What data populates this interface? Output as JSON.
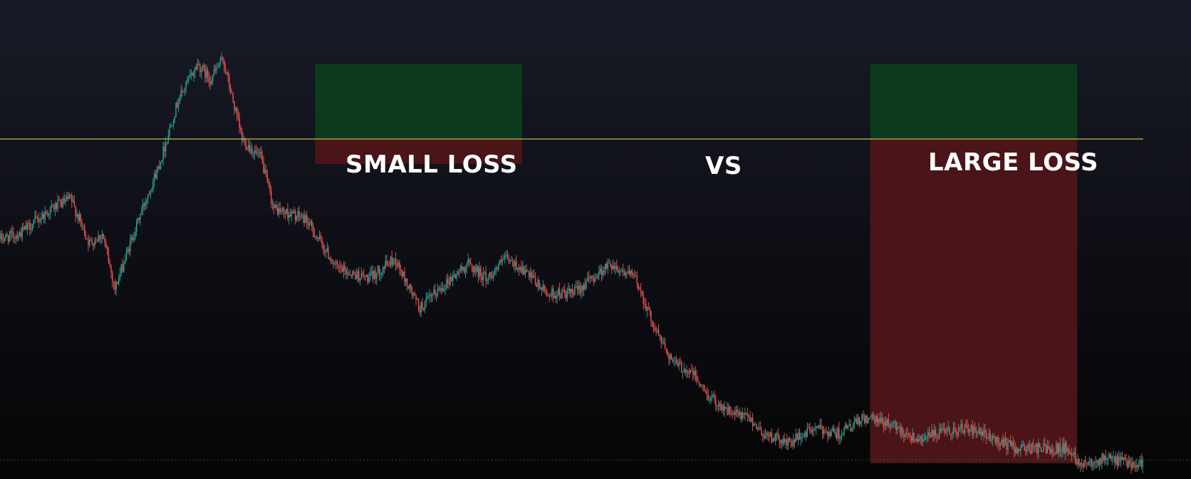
{
  "annotations": {
    "small_loss": "SMALL LOSS",
    "vs": "VS",
    "large_loss": "LARGE LOSS"
  },
  "colors": {
    "background_top": "#181a26",
    "background_bottom": "#050506",
    "up_candle": "#26a69a",
    "down_candle": "#ef5350",
    "entry_line": "#c8b45a",
    "profit_zone": "#0b3a1d",
    "loss_zone": "#4a1418"
  },
  "chart_data": {
    "type": "candlestick",
    "title": "",
    "xlabel": "",
    "ylabel": "",
    "grid": false,
    "legend": "none",
    "entry_level": 100,
    "ylim": [
      35,
      125
    ],
    "price_path": [
      [
        0,
        80
      ],
      [
        15,
        81
      ],
      [
        40,
        86
      ],
      [
        55,
        88
      ],
      [
        70,
        79
      ],
      [
        80,
        81
      ],
      [
        90,
        70
      ],
      [
        110,
        85
      ],
      [
        125,
        95
      ],
      [
        140,
        108
      ],
      [
        155,
        115
      ],
      [
        165,
        112
      ],
      [
        175,
        116
      ],
      [
        190,
        100
      ],
      [
        205,
        96
      ],
      [
        215,
        86
      ],
      [
        240,
        84
      ],
      [
        265,
        74
      ],
      [
        290,
        72
      ],
      [
        310,
        76
      ],
      [
        330,
        66
      ],
      [
        350,
        71
      ],
      [
        368,
        75
      ],
      [
        383,
        72
      ],
      [
        397,
        76
      ],
      [
        410,
        74
      ],
      [
        430,
        69
      ],
      [
        450,
        69
      ],
      [
        480,
        75
      ],
      [
        500,
        72
      ],
      [
        515,
        62
      ],
      [
        530,
        55
      ],
      [
        545,
        53
      ],
      [
        555,
        49
      ],
      [
        565,
        47
      ],
      [
        575,
        45
      ],
      [
        590,
        44
      ],
      [
        600,
        41
      ],
      [
        620,
        39
      ],
      [
        640,
        42
      ],
      [
        660,
        41
      ],
      [
        680,
        44
      ],
      [
        700,
        43
      ],
      [
        720,
        40
      ],
      [
        760,
        42
      ],
      [
        800,
        38
      ],
      [
        840,
        38
      ],
      [
        850,
        35
      ],
      [
        870,
        36
      ],
      [
        890,
        35
      ]
    ],
    "trades": [
      {
        "label": "SMALL LOSS",
        "entry": 100,
        "take_profit": 115,
        "stop_loss": 95,
        "start_index": 248,
        "end_index": 411
      },
      {
        "label": "LARGE LOSS",
        "entry": 100,
        "take_profit": 115,
        "stop_loss": 35,
        "start_index": 685,
        "end_index": 848
      }
    ]
  }
}
